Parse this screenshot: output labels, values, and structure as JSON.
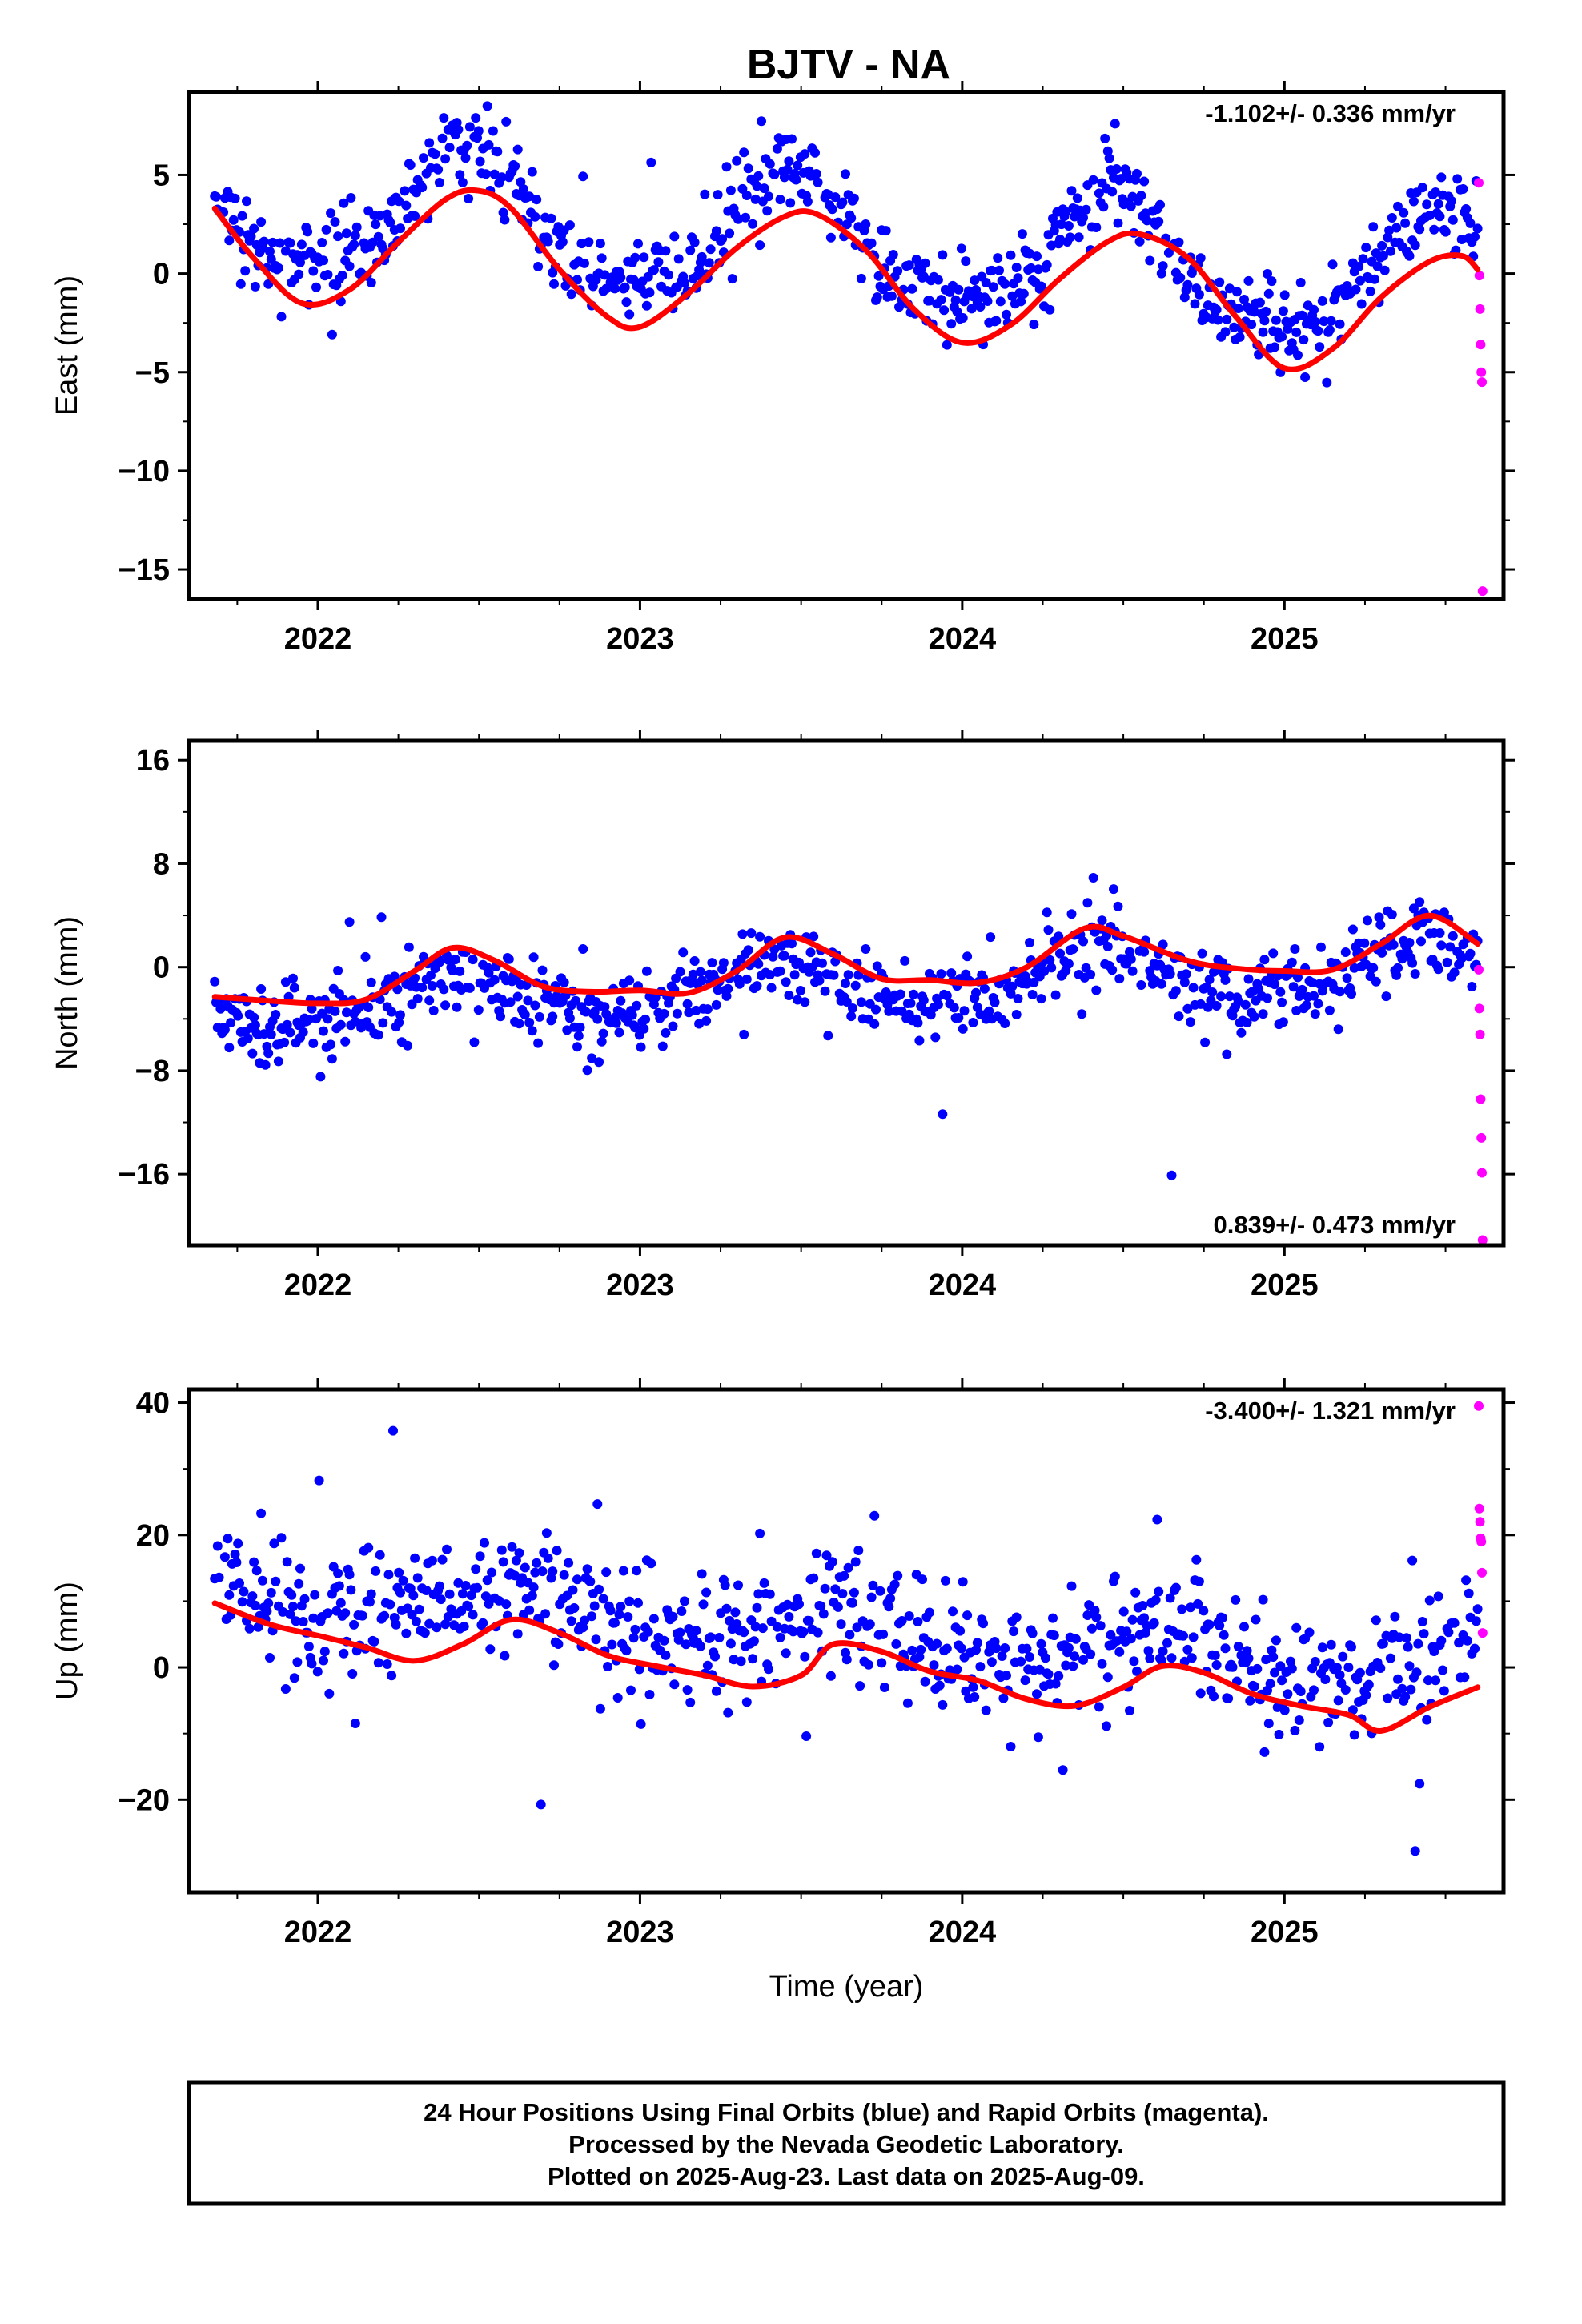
{
  "title": "BJTV - NA",
  "chart_data": [
    {
      "type": "scatter",
      "ylabel": "East (mm)",
      "xlabel": "",
      "rate_text": "-1.102+/- 0.336 mm/yr",
      "xlim": [
        2021.6,
        2025.68
      ],
      "ylim": [
        -16.5,
        9.2
      ],
      "x_ticks": [
        "2022",
        "2023",
        "2024",
        "2025"
      ],
      "y_ticks": [
        5,
        0,
        -5,
        -10,
        -15
      ],
      "series": [
        {
          "color": "#0000ff",
          "role": "final-orbits",
          "trend": -1.102,
          "offset": 1.5,
          "amp": 3.2,
          "phase_peak": 0.47,
          "semi_amp": 0.6,
          "noise": 1.1,
          "start": 2021.68,
          "end": 2025.6,
          "step": 0.0045
        },
        {
          "color": "#ff00ff",
          "role": "rapid-orbits",
          "x": [
            2025.603,
            2025.605,
            2025.607,
            2025.609,
            2025.611,
            2025.613,
            2025.615
          ],
          "y": [
            4.6,
            -0.1,
            -1.8,
            -3.6,
            -5.0,
            -5.5,
            -16.1
          ]
        }
      ],
      "fit": {
        "color": "#ff0000",
        "x": [
          2021.68,
          2021.8,
          2021.95,
          2022.1,
          2022.25,
          2022.4,
          2022.5,
          2022.6,
          2022.75,
          2022.9,
          2023.0,
          2023.15,
          2023.3,
          2023.45,
          2023.55,
          2023.7,
          2023.85,
          2024.0,
          2024.15,
          2024.3,
          2024.45,
          2024.55,
          2024.7,
          2024.85,
          2025.0,
          2025.15,
          2025.3,
          2025.45,
          2025.55,
          2025.6
        ],
        "y": [
          3.3,
          0.8,
          -1.5,
          -0.8,
          1.6,
          3.8,
          4.2,
          3.3,
          0.2,
          -2.2,
          -2.7,
          -1.0,
          1.3,
          2.9,
          3.0,
          1.2,
          -1.8,
          -3.5,
          -2.6,
          -0.3,
          1.6,
          2.0,
          0.8,
          -2.2,
          -4.8,
          -3.8,
          -1.2,
          0.6,
          0.9,
          0.2
        ]
      }
    },
    {
      "type": "scatter",
      "ylabel": "North (mm)",
      "xlabel": "",
      "rate_text": "0.839+/- 0.473 mm/yr",
      "xlim": [
        2021.6,
        2025.68
      ],
      "ylim": [
        -21.5,
        17.5
      ],
      "x_ticks": [
        "2022",
        "2023",
        "2024",
        "2025"
      ],
      "y_ticks": [
        16,
        8,
        0,
        -8,
        -16
      ],
      "series": [
        {
          "color": "#0000ff",
          "role": "final-orbits",
          "trend": 0.839,
          "offset": -1.5,
          "amp": 1.8,
          "phase_peak": 0.42,
          "semi_amp": 0.3,
          "noise": 1.5,
          "start": 2021.68,
          "end": 2025.6,
          "step": 0.0045
        },
        {
          "color": "#ff00ff",
          "role": "rapid-orbits",
          "x": [
            2025.603,
            2025.605,
            2025.607,
            2025.609,
            2025.611,
            2025.613,
            2025.615
          ],
          "y": [
            -0.2,
            -3.2,
            -5.2,
            -10.2,
            -13.2,
            -15.9,
            -21.1
          ]
        }
      ],
      "fit": {
        "color": "#ff0000",
        "x": [
          2021.68,
          2021.85,
          2022.0,
          2022.15,
          2022.3,
          2022.42,
          2022.55,
          2022.7,
          2022.85,
          2023.0,
          2023.15,
          2023.3,
          2023.45,
          2023.6,
          2023.75,
          2023.9,
          2024.05,
          2024.2,
          2024.38,
          2024.5,
          2024.7,
          2024.85,
          2025.0,
          2025.15,
          2025.3,
          2025.45,
          2025.6
        ],
        "y": [
          -2.3,
          -2.6,
          -2.8,
          -2.5,
          -0.3,
          1.5,
          0.5,
          -1.5,
          -1.9,
          -1.8,
          -2.0,
          -0.3,
          2.3,
          1.0,
          -0.9,
          -1.0,
          -1.2,
          0.0,
          3.0,
          2.4,
          0.5,
          -0.1,
          -0.3,
          -0.2,
          1.8,
          4.0,
          1.8
        ]
      }
    },
    {
      "type": "scatter",
      "ylabel": "Up (mm)",
      "xlabel": "Time (year)",
      "rate_text": "-3.400+/- 1.321 mm/yr",
      "xlim": [
        2021.6,
        2025.68
      ],
      "ylim": [
        -34,
        42
      ],
      "x_ticks": [
        "2022",
        "2023",
        "2024",
        "2025"
      ],
      "y_ticks": [
        40,
        20,
        0,
        -20
      ],
      "series": [
        {
          "color": "#0000ff",
          "role": "final-orbits",
          "trend": -3.4,
          "offset": 5.5,
          "amp": 3.8,
          "phase_peak": 0.62,
          "semi_amp": 0.8,
          "noise": 5.0,
          "start": 2021.68,
          "end": 2025.6,
          "step": 0.0045
        },
        {
          "color": "#ff00ff",
          "role": "rapid-orbits",
          "x": [
            2025.603,
            2025.605,
            2025.607,
            2025.609,
            2025.611,
            2025.613,
            2025.615
          ],
          "y": [
            39.5,
            24.0,
            22.0,
            19.5,
            19.0,
            14.3,
            5.2
          ]
        }
      ],
      "fit": {
        "color": "#ff0000",
        "x": [
          2021.68,
          2021.85,
          2022.0,
          2022.15,
          2022.3,
          2022.45,
          2022.6,
          2022.75,
          2022.9,
          2023.05,
          2023.2,
          2023.35,
          2023.5,
          2023.6,
          2023.75,
          2023.9,
          2024.05,
          2024.2,
          2024.35,
          2024.5,
          2024.62,
          2024.75,
          2024.9,
          2025.05,
          2025.2,
          2025.3,
          2025.45,
          2025.6
        ],
        "y": [
          9.7,
          6.5,
          4.8,
          3.0,
          1.0,
          3.5,
          7.2,
          5.2,
          1.8,
          0.2,
          -1.2,
          -2.9,
          -1.2,
          3.5,
          2.4,
          -0.6,
          -2.0,
          -4.8,
          -5.8,
          -3.0,
          0.2,
          -0.8,
          -4.0,
          -5.8,
          -7.2,
          -9.6,
          -6.0,
          -3.0
        ]
      }
    }
  ],
  "footer": {
    "line1": "24 Hour Positions Using Final Orbits (blue) and Rapid Orbits (magenta).",
    "line2": "Processed by the Nevada Geodetic Laboratory.",
    "line3": "Plotted on 2025-Aug-23. Last data on 2025-Aug-09."
  }
}
